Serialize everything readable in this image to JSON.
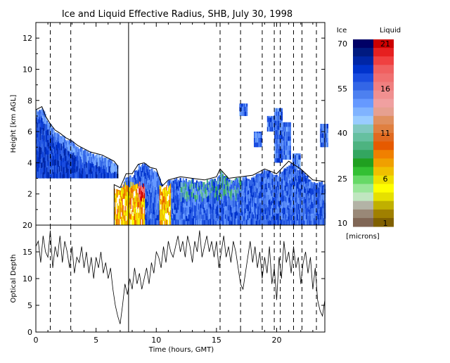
{
  "chart_data": [
    {
      "type": "heatmap",
      "title": "Ice and Liquid Effective Radius, SHB, July 30, 1998",
      "ylabel": "Height [km AGL]",
      "xlim": [
        0,
        24
      ],
      "ylim": [
        0,
        13
      ],
      "x_ticks": [
        0,
        5,
        10,
        15,
        20
      ],
      "y_ticks": [
        2,
        4,
        6,
        8,
        10,
        12
      ],
      "grid": false,
      "vertical_lines": [
        {
          "x": 1.2,
          "style": "dashed"
        },
        {
          "x": 2.9,
          "style": "dashed"
        },
        {
          "x": 7.7,
          "style": "solid"
        },
        {
          "x": 15.3,
          "style": "dashed"
        },
        {
          "x": 17.0,
          "style": "dashed"
        },
        {
          "x": 18.8,
          "style": "dashed"
        },
        {
          "x": 19.8,
          "style": "dashed"
        },
        {
          "x": 20.3,
          "style": "dashed"
        },
        {
          "x": 21.4,
          "style": "dashed"
        },
        {
          "x": 22.1,
          "style": "dashed"
        },
        {
          "x": 23.3,
          "style": "dashed"
        }
      ],
      "ice_cloud_top_km": [
        [
          0,
          7.4
        ],
        [
          0.5,
          7.6
        ],
        [
          0.8,
          7.0
        ],
        [
          1.2,
          6.5
        ],
        [
          1.6,
          6.1
        ],
        [
          2.0,
          5.9
        ],
        [
          2.5,
          5.6
        ],
        [
          3.0,
          5.4
        ],
        [
          3.5,
          5.1
        ],
        [
          4.0,
          4.9
        ],
        [
          4.5,
          4.7
        ],
        [
          5.0,
          4.6
        ],
        [
          5.5,
          4.5
        ],
        [
          6.0,
          4.3
        ],
        [
          6.5,
          4.1
        ],
        [
          6.8,
          3.8
        ]
      ],
      "ice_cloud_base_km": 3.0,
      "lower_cloud_top_km": [
        [
          6.5,
          2.6
        ],
        [
          7.0,
          2.4
        ],
        [
          7.5,
          3.3
        ],
        [
          8.0,
          3.3
        ],
        [
          8.5,
          3.9
        ],
        [
          9.0,
          4.0
        ],
        [
          9.5,
          3.7
        ],
        [
          10.0,
          3.6
        ],
        [
          10.5,
          2.5
        ],
        [
          11.0,
          2.9
        ],
        [
          12.0,
          3.1
        ],
        [
          13.0,
          3.0
        ],
        [
          14.0,
          2.9
        ],
        [
          15.0,
          3.1
        ],
        [
          15.3,
          3.6
        ],
        [
          16.0,
          3.0
        ],
        [
          17.0,
          3.1
        ],
        [
          18.0,
          3.2
        ],
        [
          19.0,
          3.6
        ],
        [
          20.0,
          3.3
        ],
        [
          21.0,
          4.1
        ],
        [
          22.0,
          3.6
        ],
        [
          23.0,
          2.9
        ],
        [
          24.0,
          2.8
        ]
      ],
      "liquid_region_x": [
        6.5,
        11.2
      ],
      "colorbar": {
        "ice_label": "Ice",
        "liquid_label": "Liquid",
        "units": "[microns]",
        "ice_ticks": [
          "70",
          "55",
          "40",
          "25",
          "10"
        ],
        "liquid_ticks": [
          "21",
          "16",
          "11",
          "6",
          "1"
        ],
        "colors": [
          "#000066",
          "#001a80",
          "#0026a6",
          "#0033cc",
          "#1a4de0",
          "#3366e6",
          "#4d80f0",
          "#6699ff",
          "#80b3ff",
          "#99ccff",
          "#80c8c0",
          "#66c0a0",
          "#4db380",
          "#33a660",
          "#20a020",
          "#33c033",
          "#66d966",
          "#99e699",
          "#c0e6c0",
          "#b3b3a6",
          "#998877",
          "#806655"
        ],
        "liquid_colors": [
          "#cc0000",
          "#e62020",
          "#f04040",
          "#f06060",
          "#f07070",
          "#f08080",
          "#f09090",
          "#f0a0a0",
          "#e6a090",
          "#e09060",
          "#e08040",
          "#e06a20",
          "#e65a00",
          "#f08000",
          "#f0a000",
          "#f0c000",
          "#f0e000",
          "#ffff00",
          "#e6e000",
          "#c0b000",
          "#a08000",
          "#806000"
        ]
      }
    },
    {
      "type": "line",
      "xlabel": "Time (hours, GMT)",
      "ylabel": "Optical Depth",
      "xlim": [
        0,
        24
      ],
      "ylim": [
        0,
        20
      ],
      "x_ticks": [
        0,
        5,
        10,
        15,
        20
      ],
      "y_ticks": [
        0,
        5,
        10,
        15,
        20
      ],
      "series": [
        {
          "x": [
            0.0,
            0.2,
            0.4,
            0.6,
            0.8,
            1.0,
            1.2,
            1.4,
            1.6,
            1.8,
            2.0,
            2.2,
            2.4,
            2.6,
            2.8,
            3.0,
            3.2,
            3.4,
            3.6,
            3.8,
            4.0,
            4.2,
            4.4,
            4.6,
            4.8,
            5.0,
            5.2,
            5.4,
            5.6,
            5.8,
            6.0,
            6.2,
            6.4,
            6.6,
            6.8,
            7.0,
            7.2,
            7.4,
            7.6,
            7.8,
            8.0,
            8.2,
            8.4,
            8.6,
            8.8,
            9.0,
            9.2,
            9.4,
            9.6,
            9.8,
            10.0,
            10.2,
            10.4,
            10.6,
            10.8,
            11.0,
            11.2,
            11.4,
            11.6,
            11.8,
            12.0,
            12.2,
            12.4,
            12.6,
            12.8,
            13.0,
            13.2,
            13.4,
            13.6,
            13.8,
            14.0,
            14.2,
            14.4,
            14.6,
            14.8,
            15.0,
            15.2,
            15.4,
            15.6,
            15.8,
            16.0,
            16.2,
            16.4,
            16.6,
            16.8,
            17.0,
            17.2,
            17.4,
            17.6,
            17.8,
            18.0,
            18.2,
            18.4,
            18.6,
            18.8,
            19.0,
            19.2,
            19.4,
            19.6,
            19.8,
            20.0,
            20.2,
            20.4,
            20.6,
            20.8,
            21.0,
            21.2,
            21.4,
            21.6,
            21.8,
            22.0,
            22.2,
            22.4,
            22.6,
            22.8,
            23.0,
            23.2,
            23.4,
            23.6,
            23.8,
            24.0
          ],
          "y": [
            16,
            17,
            13,
            18,
            15,
            14,
            19,
            12,
            16,
            14,
            18,
            13,
            17,
            15,
            12,
            16,
            11,
            14,
            13,
            16,
            12,
            15,
            11,
            14,
            10,
            14,
            12,
            15,
            11,
            13,
            10,
            12,
            8,
            5,
            3,
            1.5,
            5,
            9,
            7,
            10,
            8,
            12,
            9,
            11,
            8,
            10,
            12,
            9,
            13,
            11,
            15,
            14,
            12,
            16,
            13,
            17,
            15,
            14,
            16,
            18,
            15,
            17,
            14,
            18,
            16,
            13,
            17,
            15,
            19,
            14,
            16,
            18,
            15,
            17,
            14,
            17,
            12,
            15,
            18,
            14,
            16,
            13,
            17,
            15,
            12,
            9,
            8,
            11,
            14,
            17,
            13,
            16,
            12,
            15,
            10,
            14,
            11,
            16,
            9,
            12,
            6,
            14,
            10,
            17,
            13,
            15,
            11,
            16,
            12,
            14,
            9,
            13,
            15,
            11,
            14,
            8,
            12,
            6,
            4,
            3,
            6
          ]
        }
      ]
    }
  ]
}
